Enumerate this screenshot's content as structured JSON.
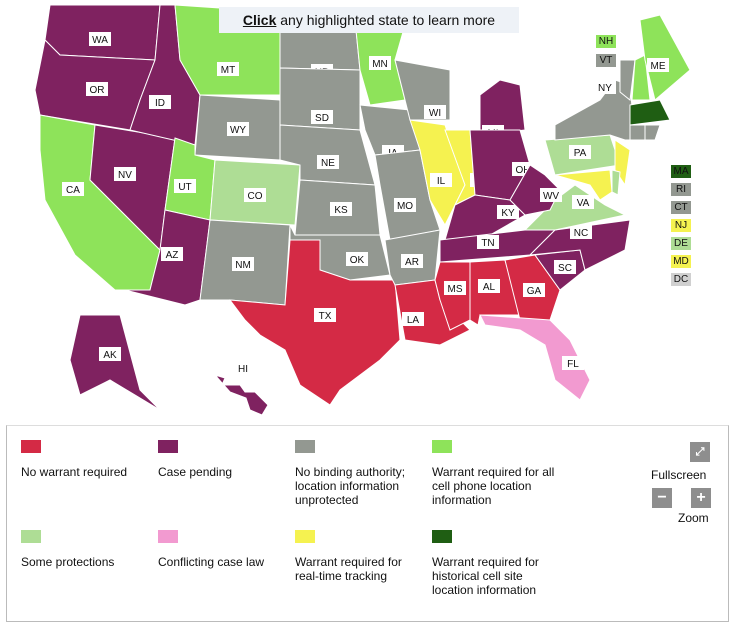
{
  "banner": {
    "click": "Click",
    "rest": " any highlighted state to learn more"
  },
  "colors": {
    "no_warrant": "#d42a45",
    "pending": "#7f2260",
    "no_binding": "#939891",
    "all_cell": "#8ee35a",
    "some": "#aedd95",
    "conflict": "#f29ad0",
    "realtime": "#f5f250",
    "historical": "#1f5e13"
  },
  "states": {
    "WA": "pending",
    "OR": "pending",
    "CA": "all_cell",
    "NV": "pending",
    "ID": "pending",
    "MT": "all_cell",
    "WY": "no_binding",
    "UT": "all_cell",
    "CO": "some",
    "AZ": "pending",
    "NM": "no_binding",
    "ND": "no_binding",
    "SD": "no_binding",
    "NE": "no_binding",
    "KS": "no_binding",
    "OK": "no_binding",
    "TX": "no_warrant",
    "MN": "all_cell",
    "IA": "no_binding",
    "MO": "no_binding",
    "AR": "no_binding",
    "LA": "no_warrant",
    "WI": "no_binding",
    "IL": "realtime",
    "MI": "pending",
    "IN": "realtime",
    "OH": "pending",
    "KY": "pending",
    "TN": "pending",
    "MS": "no_warrant",
    "AL": "no_warrant",
    "GA": "no_warrant",
    "FL": "conflict",
    "SC": "pending",
    "NC": "pending",
    "VA": "some",
    "WV": "pending",
    "PA": "some",
    "NY": "no_binding",
    "NJ": "realtime",
    "MD": "realtime",
    "DE": "some",
    "VT": "no_binding",
    "NH": "all_cell",
    "ME": "all_cell",
    "MA": "historical",
    "CT": "no_binding",
    "RI": "no_binding",
    "AK": "pending",
    "HI": "pending",
    "DC": "dc"
  },
  "side_labels": [
    "NH",
    "VT",
    "MA",
    "RI",
    "CT",
    "NJ",
    "DE",
    "MD",
    "DC"
  ],
  "legend": [
    {
      "label": "No warrant required",
      "key": "no_warrant"
    },
    {
      "label": "Case pending",
      "key": "pending"
    },
    {
      "label": "No binding authority; location information unprotected",
      "key": "no_binding"
    },
    {
      "label": "Warrant required for all cell phone location information",
      "key": "all_cell"
    },
    {
      "label": "Some protections",
      "key": "some"
    },
    {
      "label": "Conflicting case law",
      "key": "conflict"
    },
    {
      "label": "Warrant required for real-time tracking",
      "key": "realtime"
    },
    {
      "label": "Warrant required for historical cell site location information",
      "key": "historical"
    }
  ],
  "controls": {
    "fullscreen": "Fullscreen",
    "zoom": "Zoom",
    "minus": "−",
    "plus": "+"
  }
}
